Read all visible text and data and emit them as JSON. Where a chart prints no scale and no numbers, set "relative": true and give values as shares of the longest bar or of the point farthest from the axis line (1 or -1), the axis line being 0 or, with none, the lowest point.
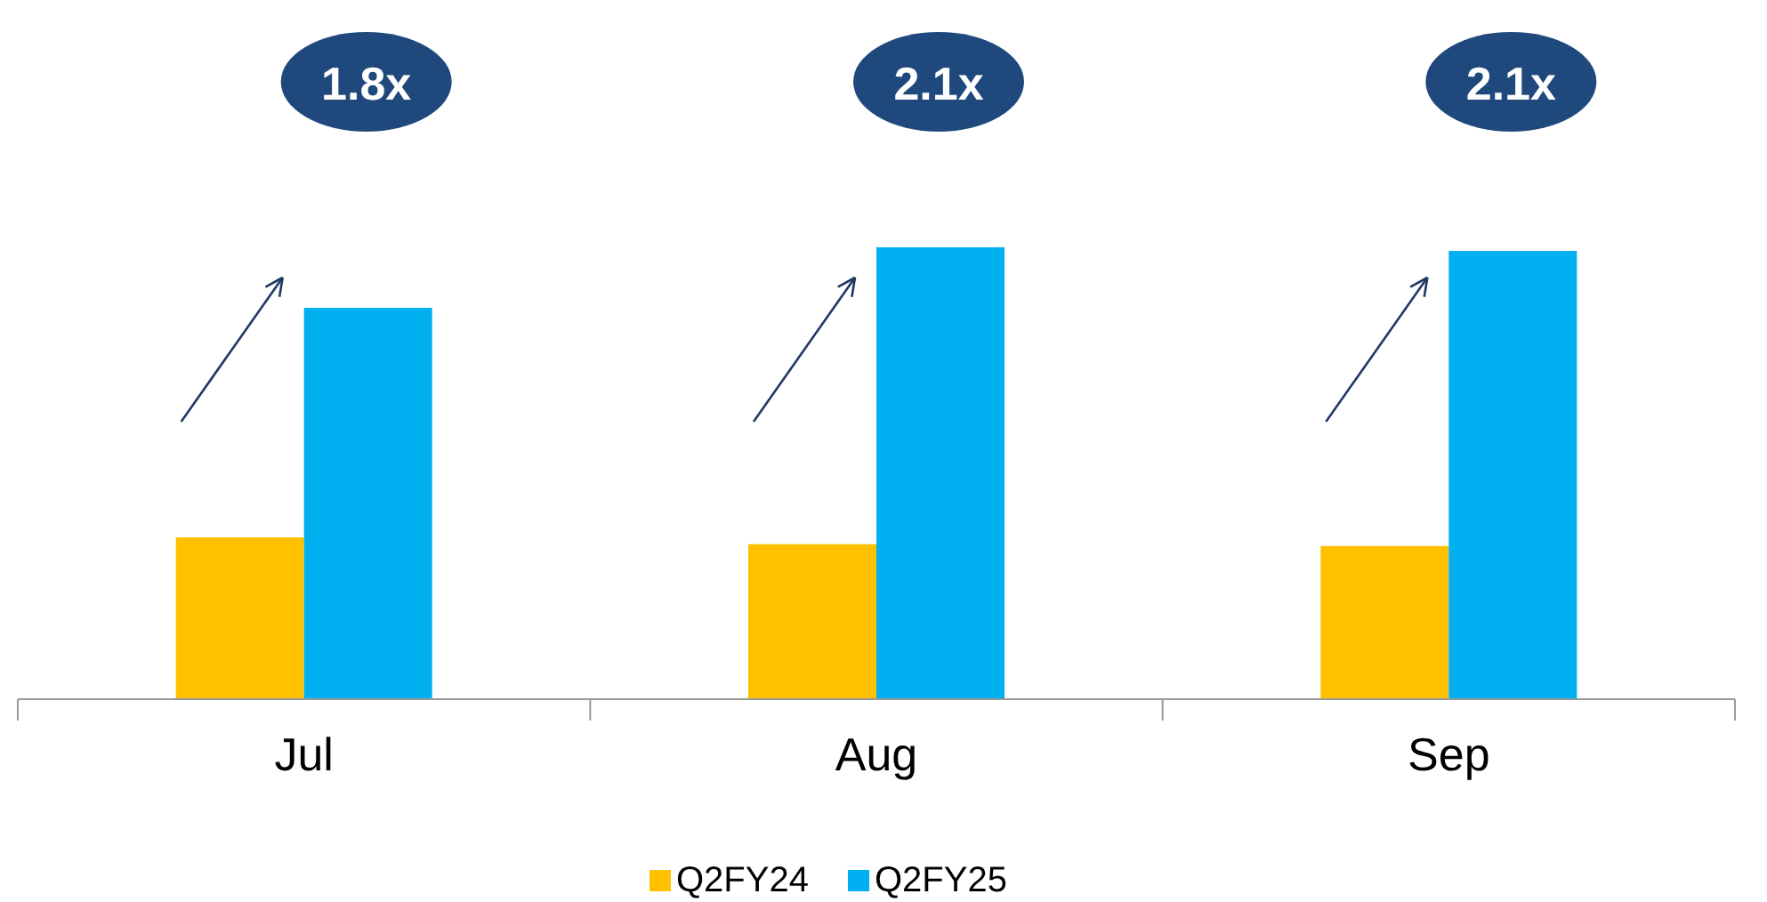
{
  "chart_data": {
    "type": "bar",
    "relative": true,
    "categories": [
      "Jul",
      "Aug",
      "Sep"
    ],
    "series": [
      {
        "name": "Q2FY24",
        "color": "#ffc000",
        "values": [
          0.358,
          0.343,
          0.339
        ]
      },
      {
        "name": "Q2FY25",
        "color": "#00b0f0",
        "values": [
          0.866,
          1,
          0.992
        ]
      }
    ],
    "annotations": [
      "1.8x",
      "2.1x",
      "2.1x"
    ],
    "legend": "bottom"
  }
}
